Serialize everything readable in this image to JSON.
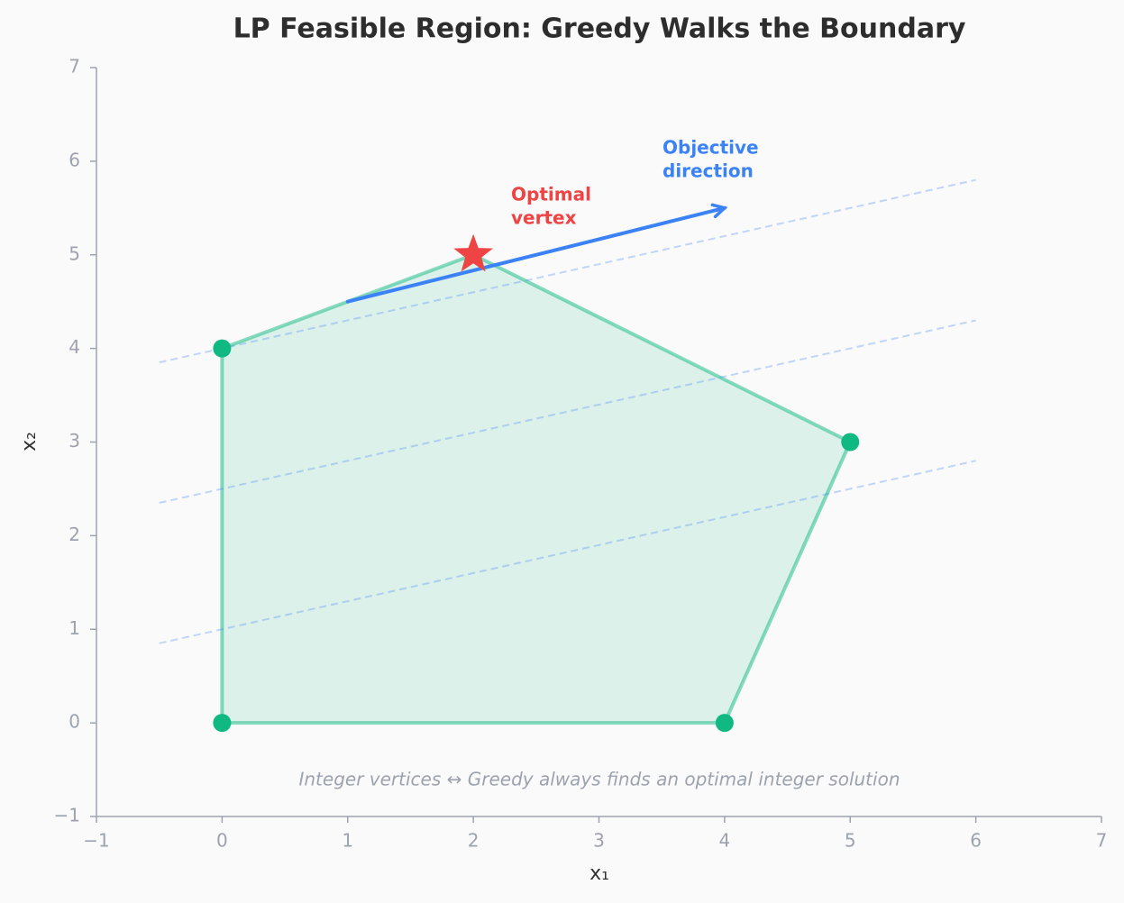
{
  "chart_data": {
    "type": "polygon",
    "title": "LP Feasible Region: Greedy Walks the Boundary",
    "x_label": "x₁",
    "y_label": "x₂",
    "xlim": [
      -1,
      7
    ],
    "ylim": [
      -1,
      7
    ],
    "xticks": [
      {
        "value": -1,
        "label": "−1"
      },
      0,
      1,
      2,
      3,
      4,
      5,
      6,
      7
    ],
    "yticks": [
      {
        "value": -1,
        "label": "−1"
      },
      0,
      1,
      2,
      3,
      4,
      5,
      6,
      7
    ],
    "region": {
      "x": [
        0,
        4,
        5,
        2,
        0
      ],
      "y": [
        0,
        0,
        3,
        5,
        4
      ],
      "color": "#10b981"
    },
    "vertices": {
      "x": [
        0,
        4,
        5,
        0
      ],
      "y": [
        0,
        0,
        3,
        4
      ],
      "color": "#10b981"
    },
    "optimal": {
      "x": 2,
      "y": 5,
      "color": "#ef4444"
    },
    "iso_lines": [
      {
        "x": [
          -0.5,
          6
        ],
        "y": [
          3.85,
          5.8
        ]
      },
      {
        "x": [
          -0.5,
          6
        ],
        "y": [
          2.35,
          4.3
        ]
      },
      {
        "x": [
          -0.5,
          6
        ],
        "y": [
          0.85,
          2.8
        ]
      }
    ],
    "iso_color": "#3b82f6",
    "arrow": {
      "x": [
        1,
        4
      ],
      "y": [
        4.5,
        5.5
      ],
      "color": "#3b82f6"
    },
    "annotations": [
      {
        "lines": [
          "Optimal",
          "vertex"
        ],
        "color": "#ef4444"
      },
      {
        "lines": [
          "Objective",
          "direction"
        ],
        "color": "#3b82f6"
      }
    ],
    "footnote": "Integer vertices ↔ Greedy always finds an optimal integer solution"
  }
}
